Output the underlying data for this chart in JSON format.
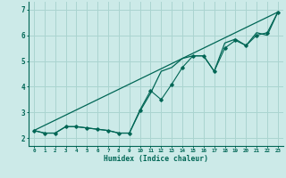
{
  "xlabel": "Humidex (Indice chaleur)",
  "bg_color": "#cceae8",
  "grid_color": "#aad4d0",
  "line_color": "#006655",
  "xlim": [
    -0.5,
    23.5
  ],
  "ylim": [
    1.7,
    7.3
  ],
  "xticks": [
    0,
    1,
    2,
    3,
    4,
    5,
    6,
    7,
    8,
    9,
    10,
    11,
    12,
    13,
    14,
    15,
    16,
    17,
    18,
    19,
    20,
    21,
    22,
    23
  ],
  "yticks": [
    2,
    3,
    4,
    5,
    6,
    7
  ],
  "series1_x": [
    0,
    1,
    2,
    3,
    4,
    5,
    6,
    7,
    8,
    9,
    10,
    11,
    12,
    13,
    14,
    15,
    16,
    17,
    18,
    19,
    20,
    21,
    22,
    23
  ],
  "series1_y": [
    2.3,
    2.2,
    2.2,
    2.45,
    2.45,
    2.4,
    2.35,
    2.3,
    2.2,
    2.2,
    3.1,
    3.85,
    3.5,
    4.1,
    4.75,
    5.2,
    5.2,
    4.6,
    5.5,
    5.8,
    5.6,
    6.0,
    6.1,
    6.9
  ],
  "series2_x": [
    0,
    1,
    2,
    3,
    4,
    5,
    6,
    7,
    8,
    9,
    10,
    11,
    12,
    13,
    14,
    15,
    16,
    17,
    18,
    19,
    20,
    21,
    22,
    23
  ],
  "series2_y": [
    2.3,
    2.2,
    2.2,
    2.45,
    2.45,
    2.4,
    2.35,
    2.3,
    2.2,
    2.2,
    3.05,
    3.75,
    4.6,
    4.75,
    5.1,
    5.2,
    5.2,
    4.6,
    5.7,
    5.85,
    5.6,
    6.1,
    6.0,
    6.9
  ],
  "series3_x": [
    0,
    23
  ],
  "series3_y": [
    2.3,
    6.9
  ]
}
